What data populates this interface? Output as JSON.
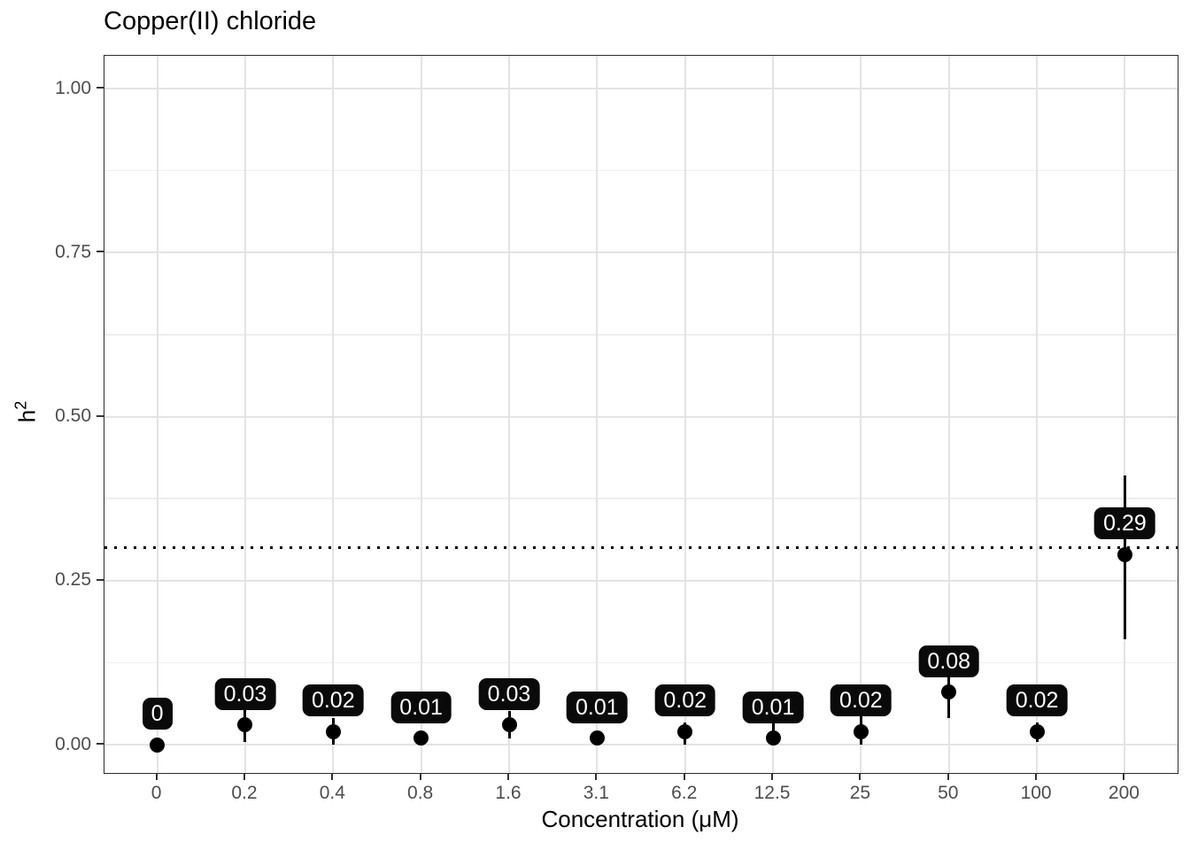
{
  "title": "Copper(II) chloride",
  "chart_data": {
    "type": "scatter",
    "subtype": "pointrange-with-labels",
    "title": "Copper(II) chloride",
    "xlabel": "Concentration (μM)",
    "ylabel": "h²",
    "ylabel_base": "h",
    "ylabel_sup": "2",
    "categories": [
      "0",
      "0.2",
      "0.4",
      "0.8",
      "1.6",
      "3.1",
      "6.2",
      "12.5",
      "25",
      "50",
      "100",
      "200"
    ],
    "values": [
      0,
      0.03,
      0.02,
      0.01,
      0.03,
      0.01,
      0.02,
      0.01,
      0.02,
      0.08,
      0.02,
      0.29
    ],
    "point_labels": [
      "0",
      "0.03",
      "0.02",
      "0.01",
      "0.03",
      "0.01",
      "0.02",
      "0.01",
      "0.02",
      "0.08",
      "0.02",
      "0.29"
    ],
    "error_low": [
      0,
      0.004,
      0.0,
      0.01,
      0.009,
      0.01,
      0.0,
      0.002,
      0.0,
      0.04,
      0.004,
      0.16
    ],
    "error_high": [
      0,
      0.058,
      0.04,
      0.01,
      0.051,
      0.01,
      0.034,
      0.032,
      0.047,
      0.108,
      0.034,
      0.41
    ],
    "reference_line": 0.3,
    "reference_line_style": "dotted",
    "y_ticks": [
      "0.00",
      "0.25",
      "0.50",
      "0.75",
      "1.00"
    ],
    "y_tick_values": [
      0,
      0.25,
      0.5,
      0.75,
      1.0
    ],
    "y_minor_values": [
      0.125,
      0.375,
      0.625,
      0.875
    ],
    "ylim": [
      -0.043,
      1.05
    ],
    "grid": "major-and-minor-horizontal, major-vertical",
    "legend": "none",
    "colors": {
      "point": "#000000",
      "error_bar": "#000000",
      "label_bg": "#0a0a0a",
      "label_text": "#ffffff",
      "grid_major": "#e3e3e3",
      "grid_minor": "#eeeeee",
      "panel_border": "#2b2b2b",
      "tick_text": "#4d4d4d",
      "title_text": "#000000",
      "background": "#ffffff",
      "reference_line": "#000000"
    }
  }
}
